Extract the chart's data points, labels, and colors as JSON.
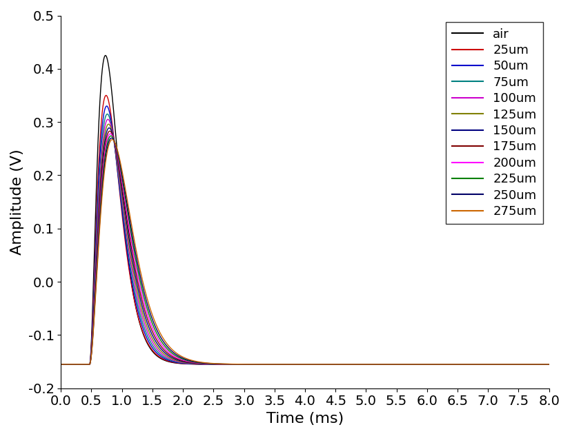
{
  "title": "",
  "xlabel": "Time (ms)",
  "ylabel": "Amplitude (V)",
  "xlim": [
    0,
    8.0
  ],
  "ylim": [
    -0.2,
    0.5
  ],
  "xticks": [
    0.0,
    0.5,
    1.0,
    1.5,
    2.0,
    2.5,
    3.0,
    3.5,
    4.0,
    4.5,
    5.0,
    5.5,
    6.0,
    6.5,
    7.0,
    7.5,
    8.0
  ],
  "yticks": [
    -0.2,
    -0.1,
    0.0,
    0.1,
    0.2,
    0.3,
    0.4,
    0.5
  ],
  "series": [
    {
      "label": "air",
      "color": "#000000",
      "peak": 0.425,
      "tau": 0.13,
      "baseline": -0.155,
      "onset": 0.47
    },
    {
      "label": "25um",
      "color": "#cc0000",
      "peak": 0.35,
      "tau": 0.135,
      "baseline": -0.155,
      "onset": 0.47
    },
    {
      "label": "50um",
      "color": "#0000cc",
      "peak": 0.33,
      "tau": 0.14,
      "baseline": -0.155,
      "onset": 0.47
    },
    {
      "label": "75um",
      "color": "#008080",
      "peak": 0.315,
      "tau": 0.145,
      "baseline": -0.155,
      "onset": 0.47
    },
    {
      "label": "100um",
      "color": "#cc00cc",
      "peak": 0.305,
      "tau": 0.15,
      "baseline": -0.155,
      "onset": 0.47
    },
    {
      "label": "125um",
      "color": "#808000",
      "peak": 0.296,
      "tau": 0.155,
      "baseline": -0.155,
      "onset": 0.47
    },
    {
      "label": "150um",
      "color": "#000080",
      "peak": 0.289,
      "tau": 0.16,
      "baseline": -0.155,
      "onset": 0.47
    },
    {
      "label": "175um",
      "color": "#800000",
      "peak": 0.283,
      "tau": 0.165,
      "baseline": -0.155,
      "onset": 0.47
    },
    {
      "label": "200um",
      "color": "#ff00ff",
      "peak": 0.278,
      "tau": 0.17,
      "baseline": -0.155,
      "onset": 0.47
    },
    {
      "label": "225um",
      "color": "#008000",
      "peak": 0.274,
      "tau": 0.175,
      "baseline": -0.155,
      "onset": 0.47
    },
    {
      "label": "250um",
      "color": "#000066",
      "peak": 0.27,
      "tau": 0.18,
      "baseline": -0.155,
      "onset": 0.47
    },
    {
      "label": "275um",
      "color": "#cc6600",
      "peak": 0.267,
      "tau": 0.185,
      "baseline": -0.155,
      "onset": 0.47
    }
  ],
  "xlabel_fontsize": 16,
  "ylabel_fontsize": 16,
  "tick_fontsize": 14,
  "legend_fontsize": 13
}
